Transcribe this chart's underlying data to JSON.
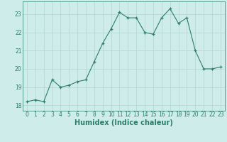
{
  "x": [
    0,
    1,
    2,
    3,
    4,
    5,
    6,
    7,
    8,
    9,
    10,
    11,
    12,
    13,
    14,
    15,
    16,
    17,
    18,
    19,
    20,
    21,
    22,
    23
  ],
  "y": [
    18.2,
    18.3,
    18.2,
    19.4,
    19.0,
    19.1,
    19.3,
    19.4,
    20.4,
    21.4,
    22.2,
    23.1,
    22.8,
    22.8,
    22.0,
    21.9,
    22.8,
    23.3,
    22.5,
    22.8,
    21.0,
    20.0,
    20.0,
    20.1
  ],
  "line_color": "#2d7d6e",
  "marker_color": "#2d7d6e",
  "bg_color": "#ceecea",
  "grid_color": "#b8d8d5",
  "xlabel": "Humidex (Indice chaleur)",
  "ylim": [
    17.7,
    23.7
  ],
  "xlim": [
    -0.5,
    23.5
  ],
  "yticks": [
    18,
    19,
    20,
    21,
    22,
    23
  ],
  "xticks": [
    0,
    1,
    2,
    3,
    4,
    5,
    6,
    7,
    8,
    9,
    10,
    11,
    12,
    13,
    14,
    15,
    16,
    17,
    18,
    19,
    20,
    21,
    22,
    23
  ],
  "tick_fontsize": 5.5,
  "xlabel_fontsize": 7.0
}
